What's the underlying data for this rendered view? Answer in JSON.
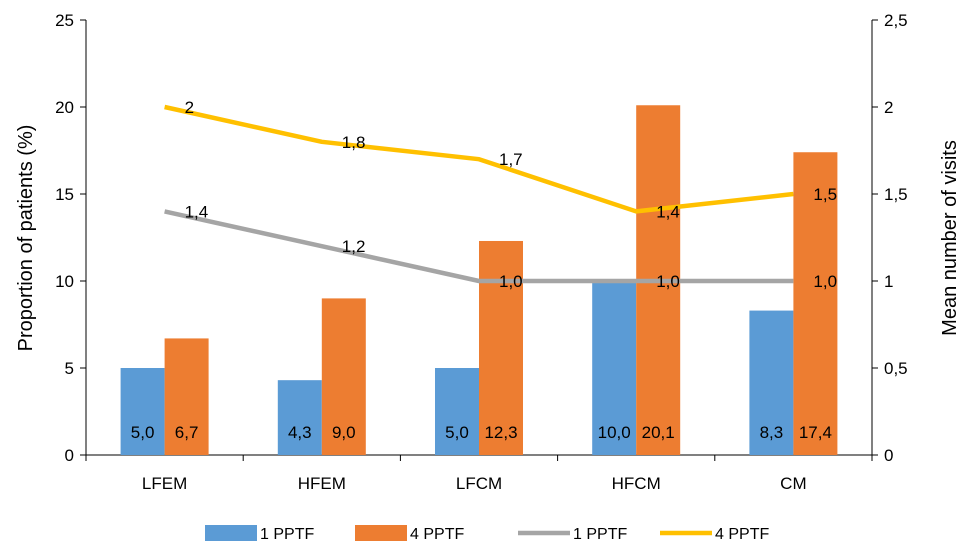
{
  "chart_data": {
    "type": "bar",
    "categories": [
      "LFEM",
      "HFEM",
      "LFCM",
      "HFCM",
      "CM"
    ],
    "bar_series": [
      {
        "name": "1 PPTF",
        "values": [
          5.0,
          4.3,
          5.0,
          10.0,
          8.3
        ],
        "labels": [
          "5,0",
          "4,3",
          "5,0",
          "10,0",
          "8,3"
        ],
        "color": "#5b9bd5"
      },
      {
        "name": "4 PPTF",
        "values": [
          6.7,
          9.0,
          12.3,
          20.1,
          17.4
        ],
        "labels": [
          "6,7",
          "9,0",
          "12,3",
          "20,1",
          "17,4"
        ],
        "color": "#ed7d31"
      }
    ],
    "line_series": [
      {
        "name": "1 PPTF",
        "values": [
          1.4,
          1.2,
          1.0,
          1.0,
          1.0
        ],
        "labels": [
          "1,4",
          "1,2",
          "1,0",
          "1,0",
          "1,0"
        ],
        "color": "#a5a5a5"
      },
      {
        "name": "4 PPTF",
        "values": [
          2.0,
          1.8,
          1.7,
          1.4,
          1.5
        ],
        "labels": [
          "2",
          "1,8",
          "1,7",
          "1,4",
          "1,5"
        ],
        "color": "#ffc000"
      }
    ],
    "ylabel": "Proportion of patients (%)",
    "y2label": "Mean number of visits",
    "ylim": [
      0,
      25
    ],
    "y2lim": [
      0,
      2.5
    ],
    "yticks": [
      "0",
      "5",
      "10",
      "15",
      "20",
      "25"
    ],
    "y2ticks": [
      "0",
      "0,5",
      "1",
      "1,5",
      "2",
      "2,5"
    ],
    "legend_position": "bottom",
    "grid": false
  }
}
